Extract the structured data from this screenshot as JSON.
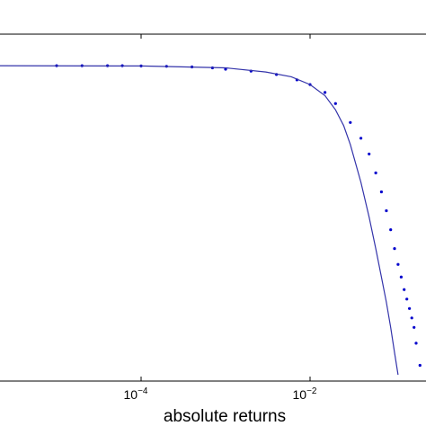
{
  "chart_data": {
    "type": "scatter",
    "xlabel": "absolute returns",
    "ylabel": "",
    "title": "",
    "x_scale": "log",
    "xlim": [
      1e-06,
      0.4
    ],
    "ylim": [
      0,
      1.1
    ],
    "xticks": [
      {
        "value": 0.0001,
        "base": "10",
        "exp": "−4"
      },
      {
        "value": 0.01,
        "base": "10",
        "exp": "−2"
      }
    ],
    "grid": false,
    "colors": {
      "series": "#0000cc",
      "fit": "#3333aa"
    },
    "series": [
      {
        "style": "dots",
        "x": [
          1e-05,
          2e-05,
          4e-05,
          6e-05,
          0.0001,
          0.0002,
          0.0004,
          0.0007,
          0.001,
          0.002,
          0.004,
          0.007,
          0.01,
          0.015,
          0.02,
          0.03,
          0.04,
          0.05,
          0.06,
          0.07,
          0.08,
          0.09,
          0.1,
          0.11,
          0.12,
          0.13,
          0.14,
          0.15,
          0.16,
          0.17,
          0.18,
          0.2
        ],
        "y": [
          1.0,
          1.0,
          1.0,
          1.0,
          0.999,
          0.998,
          0.996,
          0.993,
          0.989,
          0.983,
          0.972,
          0.955,
          0.94,
          0.915,
          0.88,
          0.82,
          0.77,
          0.72,
          0.66,
          0.6,
          0.54,
          0.48,
          0.42,
          0.37,
          0.33,
          0.29,
          0.26,
          0.23,
          0.2,
          0.17,
          0.12,
          0.05
        ]
      },
      {
        "style": "line",
        "x": [
          1e-06,
          0.0001,
          0.001,
          0.003,
          0.006,
          0.01,
          0.015,
          0.02,
          0.025,
          0.03,
          0.04,
          0.05,
          0.06,
          0.07,
          0.08,
          0.09,
          0.1,
          0.11
        ],
        "y": [
          1.0,
          0.999,
          0.993,
          0.98,
          0.965,
          0.94,
          0.905,
          0.86,
          0.81,
          0.75,
          0.63,
          0.52,
          0.42,
          0.33,
          0.25,
          0.17,
          0.09,
          0.02
        ]
      }
    ]
  }
}
